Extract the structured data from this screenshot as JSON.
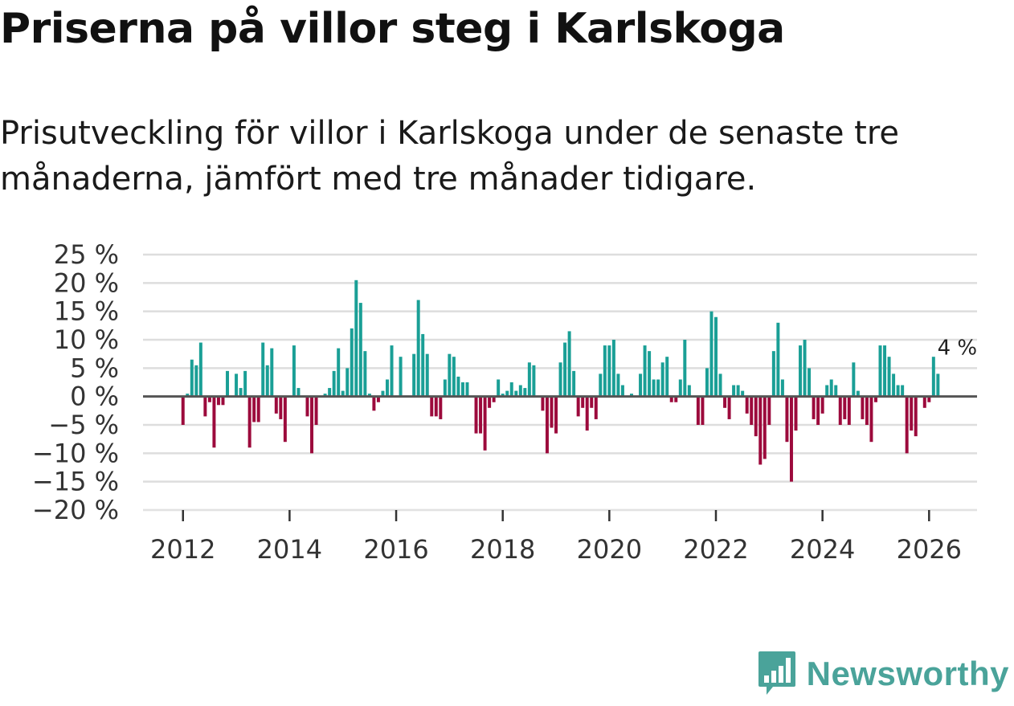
{
  "title": "Priserna på villor steg i Karlskoga",
  "subtitle": "Prisutveckling för villor i Karlskoga under de senaste tre månaderna, jämfört med tre månader tidigare.",
  "brand": {
    "name": "Newsworthy",
    "color": "#4aa39a",
    "icon": "newsworthy-logo-icon"
  },
  "colors": {
    "positive": "#1a9f96",
    "negative": "#9c0a3c",
    "grid": "#dddddd",
    "zero": "#555555"
  },
  "chart_data": {
    "type": "bar",
    "title": "Priserna på villor steg i Karlskoga",
    "xlabel": "",
    "ylabel": "",
    "ylim": [
      -20,
      25
    ],
    "xlim": [
      2011.25,
      2026.9
    ],
    "yticks": [
      25,
      20,
      15,
      10,
      5,
      0,
      -5,
      -10,
      -15,
      -20
    ],
    "ytick_labels": [
      "25 %",
      "20 %",
      "15 %",
      "10 %",
      "5 %",
      "0 %",
      "−5 %",
      "−10 %",
      "−15 %",
      "−20 %"
    ],
    "xticks": [
      2012,
      2014,
      2016,
      2018,
      2020,
      2022,
      2024,
      2026
    ],
    "xtick_labels": [
      "2012",
      "2014",
      "2016",
      "2018",
      "2020",
      "2022",
      "2024",
      "2026"
    ],
    "start": "2012-01",
    "frequency": "monthly",
    "annotation": "4 %",
    "values": [
      -5,
      0.5,
      6.5,
      5.5,
      9.5,
      -3.5,
      -1,
      -9,
      -1.5,
      -1.5,
      4.5,
      0,
      4,
      1.5,
      4.5,
      -9,
      -4.5,
      -4.5,
      9.5,
      5.5,
      8.5,
      -3,
      -4,
      -8,
      0,
      9,
      1.5,
      0,
      -3.5,
      -10,
      -5,
      0,
      0.5,
      1.5,
      4.5,
      8.5,
      1,
      5,
      12,
      20.5,
      16.5,
      8,
      0.5,
      -2.5,
      -1,
      1,
      3,
      9,
      0,
      7,
      0,
      0,
      7.5,
      17,
      11,
      7.5,
      -3.5,
      -3.5,
      -4,
      3,
      7.5,
      7,
      3.5,
      2.5,
      2.5,
      0,
      -6.5,
      -6.5,
      -9.5,
      -2,
      -1,
      3,
      0.5,
      1,
      2.5,
      1,
      2,
      1.5,
      6,
      5.5,
      0,
      -2.5,
      -10,
      -5.5,
      -6.5,
      6,
      9.5,
      11.5,
      4.5,
      -3.5,
      -2,
      -6,
      -2,
      -4,
      4,
      9,
      9,
      10,
      4,
      2,
      0,
      0.5,
      0,
      4,
      9,
      8,
      3,
      3,
      6,
      7,
      -1,
      -1,
      3,
      10,
      2,
      0,
      -5,
      -5,
      5,
      15,
      14,
      4,
      -2,
      -4,
      2,
      2,
      1,
      -3,
      -5,
      -7,
      -12,
      -11,
      -5,
      8,
      13,
      3,
      -8,
      -15,
      -6,
      9,
      10,
      5,
      -4,
      -5,
      -3,
      2,
      3,
      2,
      -5,
      -4,
      -5,
      6,
      1,
      -4,
      -5,
      -8,
      -1,
      9,
      9,
      7,
      4,
      2,
      2,
      -10,
      -6,
      -7,
      0,
      -2,
      -1,
      7,
      4
    ]
  }
}
